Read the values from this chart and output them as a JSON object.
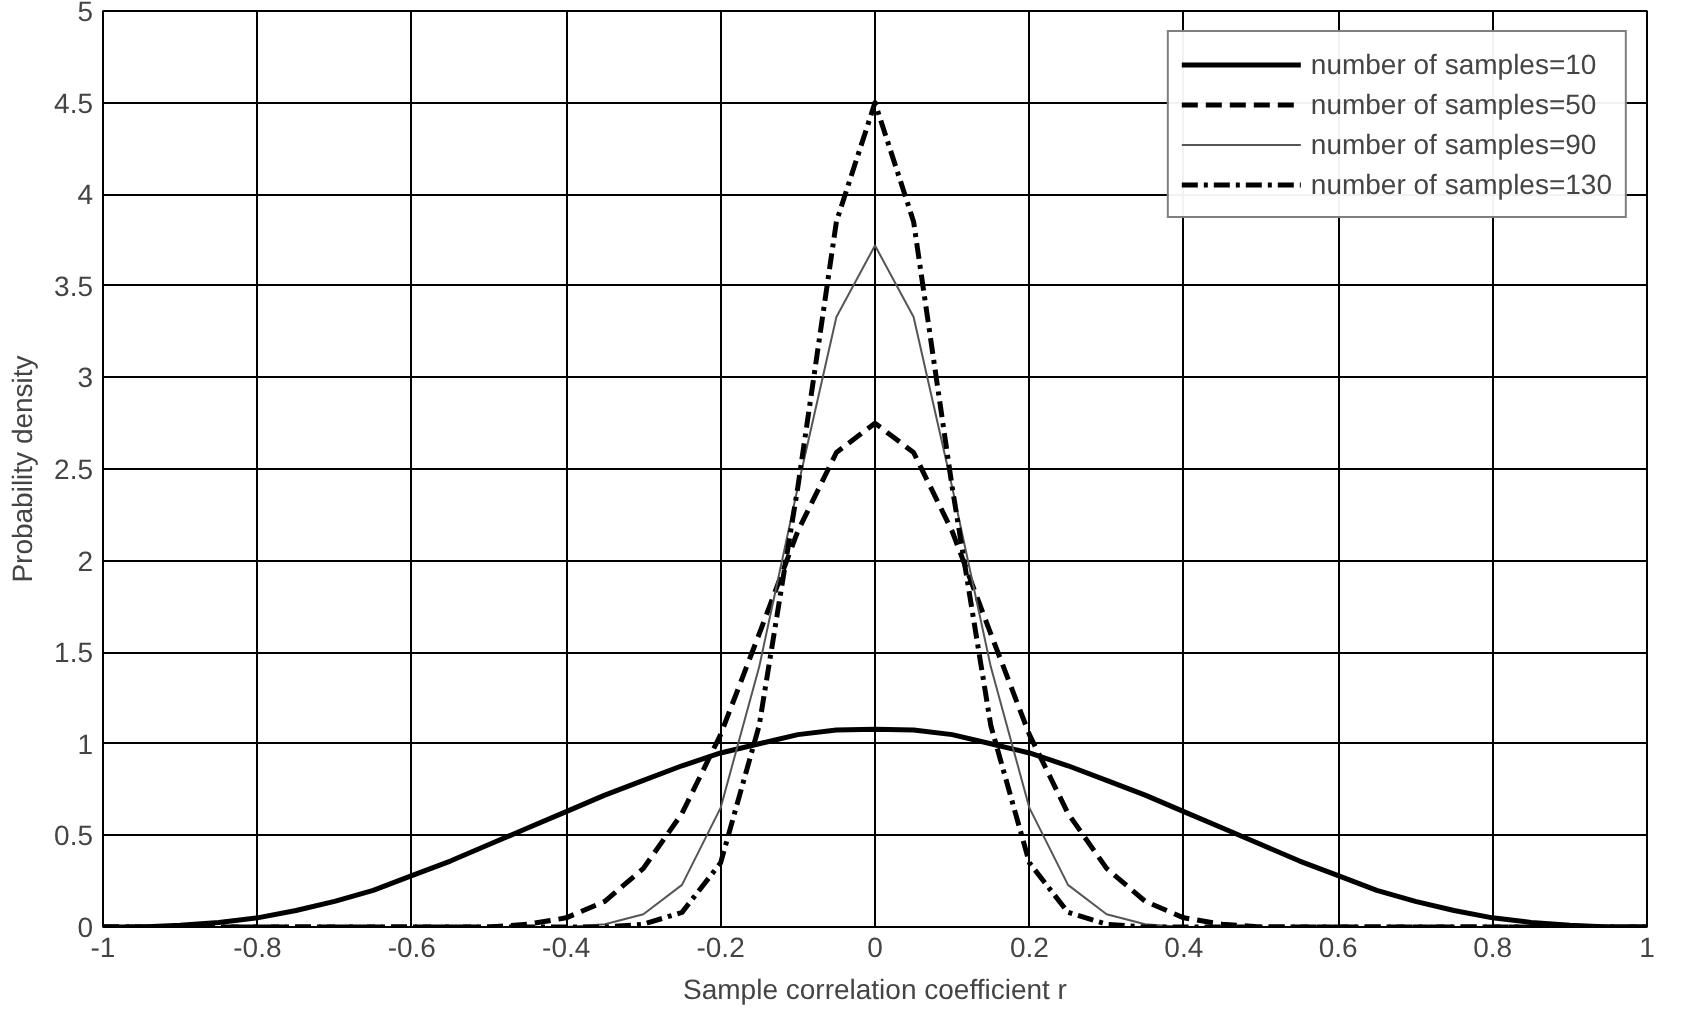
{
  "chart_data": {
    "type": "line",
    "xlabel": "Sample correlation coefficient r",
    "ylabel": "Probability density",
    "x": [
      -1,
      -0.95,
      -0.9,
      -0.85,
      -0.8,
      -0.75,
      -0.7,
      -0.65,
      -0.6,
      -0.55,
      -0.5,
      -0.45,
      -0.4,
      -0.35,
      -0.3,
      -0.25,
      -0.2,
      -0.15,
      -0.1,
      -0.05,
      0,
      0.05,
      0.1,
      0.15,
      0.2,
      0.25,
      0.3,
      0.35,
      0.4,
      0.45,
      0.5,
      0.55,
      0.6,
      0.65,
      0.7,
      0.75,
      0.8,
      0.85,
      0.9,
      0.95,
      1
    ],
    "series": [
      {
        "name": "number of samples=10",
        "color": "#000000",
        "line_style": "solid",
        "values": [
          0,
          0,
          0.01,
          0.025,
          0.05,
          0.09,
          0.14,
          0.2,
          0.28,
          0.36,
          0.45,
          0.54,
          0.63,
          0.72,
          0.8,
          0.88,
          0.95,
          1.0,
          1.05,
          1.075,
          1.08,
          1.075,
          1.05,
          1.0,
          0.95,
          0.88,
          0.8,
          0.72,
          0.63,
          0.54,
          0.45,
          0.36,
          0.28,
          0.2,
          0.14,
          0.09,
          0.05,
          0.025,
          0.01,
          0,
          0
        ]
      },
      {
        "name": "number of samples=50",
        "color": "#000000",
        "line_style": "dashed",
        "values": [
          0,
          0,
          0,
          0,
          0,
          0,
          0,
          0,
          0,
          0,
          0,
          0.015,
          0.05,
          0.14,
          0.32,
          0.62,
          1.05,
          1.6,
          2.16,
          2.59,
          2.75,
          2.59,
          2.16,
          1.6,
          1.05,
          0.62,
          0.32,
          0.14,
          0.05,
          0.015,
          0,
          0,
          0,
          0,
          0,
          0,
          0,
          0,
          0,
          0,
          0
        ]
      },
      {
        "name": "number of samples=90",
        "color": "#555555",
        "line_style": "solid",
        "values": [
          0,
          0,
          0,
          0,
          0,
          0,
          0,
          0,
          0,
          0,
          0,
          0,
          0,
          0.015,
          0.07,
          0.23,
          0.65,
          1.42,
          2.4,
          3.33,
          3.72,
          3.33,
          2.4,
          1.42,
          0.65,
          0.23,
          0.07,
          0.015,
          0,
          0,
          0,
          0,
          0,
          0,
          0,
          0,
          0,
          0,
          0,
          0,
          0
        ]
      },
      {
        "name": "number of samples=130",
        "color": "#000000",
        "line_style": "dashdot",
        "values": [
          0,
          0,
          0,
          0,
          0,
          0,
          0,
          0,
          0,
          0,
          0,
          0,
          0,
          0,
          0.015,
          0.08,
          0.35,
          1.1,
          2.4,
          3.85,
          4.5,
          3.85,
          2.4,
          1.1,
          0.35,
          0.08,
          0.015,
          0,
          0,
          0,
          0,
          0,
          0,
          0,
          0,
          0,
          0,
          0,
          0,
          0,
          0
        ]
      }
    ],
    "xlim": [
      -1,
      1
    ],
    "xticks": [
      -1,
      -0.8,
      -0.6,
      -0.4,
      -0.2,
      0,
      0.2,
      0.4,
      0.6,
      0.8,
      1
    ],
    "ylim": [
      0,
      5
    ],
    "yticks": [
      0,
      0.5,
      1,
      1.5,
      2,
      2.5,
      3,
      3.5,
      4,
      4.5,
      5
    ],
    "grid": true,
    "legend": "top right"
  }
}
